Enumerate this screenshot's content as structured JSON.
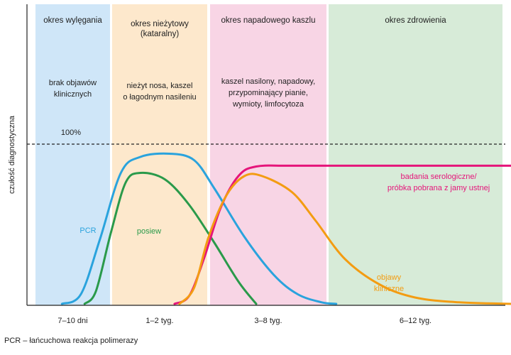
{
  "chart_data": {
    "type": "line",
    "ylabel": "czułość diagnostyczna",
    "reference_line": {
      "label": "100%",
      "value": 100
    },
    "ylim": [
      0,
      120
    ],
    "phases": [
      {
        "name": "okres wylęgania",
        "title_lines": [
          "okres wylęgania"
        ],
        "description_lines": [
          "brak objawów",
          "klinicznych"
        ],
        "tick": "7–10 dni",
        "range": [
          0,
          1
        ],
        "color": "#cfe6f8"
      },
      {
        "name": "okres nieżytowy (kataralny)",
        "title_lines": [
          "okres nieżytowy",
          "(kataralny)"
        ],
        "description_lines": [
          "nieżyt nosa, kaszel",
          "o łagodnym nasileniu"
        ],
        "tick": "1–2 tyg.",
        "range": [
          1,
          2
        ],
        "color": "#fde8cc"
      },
      {
        "name": "okres napadowego kaszlu",
        "title_lines": [
          "okres napadowego kaszlu"
        ],
        "description_lines": [
          "kaszel nasilony, napadowy,",
          "przypominający pianie,",
          "wymioty, limfocytoza"
        ],
        "tick": "3–8 tyg.",
        "range": [
          2,
          3
        ],
        "color": "#f8d5e5"
      },
      {
        "name": "okres zdrowienia",
        "title_lines": [
          "okres zdrowienia"
        ],
        "description_lines": [],
        "tick": "6–12 tyg.",
        "range": [
          3,
          4
        ],
        "color": "#d7ebd8"
      }
    ],
    "series": [
      {
        "name": "PCR",
        "label_lines": [
          "PCR"
        ],
        "color": "#2aa3dd",
        "points": [
          [
            0.35,
            0
          ],
          [
            0.6,
            6
          ],
          [
            0.85,
            40
          ],
          [
            1.1,
            82
          ],
          [
            1.3,
            92
          ],
          [
            1.6,
            94
          ],
          [
            1.85,
            90
          ],
          [
            2.05,
            72
          ],
          [
            2.3,
            42
          ],
          [
            2.55,
            18
          ],
          [
            2.75,
            6
          ],
          [
            2.95,
            1
          ],
          [
            3.05,
            0
          ]
        ]
      },
      {
        "name": "posiew",
        "label_lines": [
          "posiew"
        ],
        "color": "#2a9a4a",
        "points": [
          [
            0.65,
            0
          ],
          [
            0.8,
            8
          ],
          [
            1.0,
            45
          ],
          [
            1.15,
            76
          ],
          [
            1.3,
            82
          ],
          [
            1.55,
            78
          ],
          [
            1.8,
            62
          ],
          [
            2.05,
            38
          ],
          [
            2.25,
            14
          ],
          [
            2.4,
            0
          ]
        ]
      },
      {
        "name": "badania serologiczne/próbka pobrana z jamy ustnej",
        "label_lines": [
          "badania serologiczne/",
          "próbka pobrana z jamy ustnej"
        ],
        "color": "#e5157a",
        "points": [
          [
            1.65,
            0
          ],
          [
            1.8,
            5
          ],
          [
            1.95,
            28
          ],
          [
            2.1,
            60
          ],
          [
            2.25,
            80
          ],
          [
            2.4,
            86
          ],
          [
            2.7,
            86.5
          ],
          [
            3.3,
            86.5
          ],
          [
            4.2,
            86.5
          ],
          [
            4.55,
            86.5
          ]
        ]
      },
      {
        "name": "objawy kliniczne",
        "label_lines": [
          "objawy",
          "kliniczne"
        ],
        "color": "#f39c12",
        "points": [
          [
            1.7,
            0
          ],
          [
            1.85,
            10
          ],
          [
            2.0,
            42
          ],
          [
            2.15,
            68
          ],
          [
            2.3,
            80
          ],
          [
            2.45,
            80
          ],
          [
            2.7,
            70
          ],
          [
            2.9,
            52
          ],
          [
            3.1,
            28
          ],
          [
            3.3,
            12
          ],
          [
            3.5,
            4
          ],
          [
            3.75,
            1
          ],
          [
            4.05,
            0
          ]
        ]
      }
    ]
  },
  "footnote": "PCR – łańcuchowa reakcja polimerazy"
}
